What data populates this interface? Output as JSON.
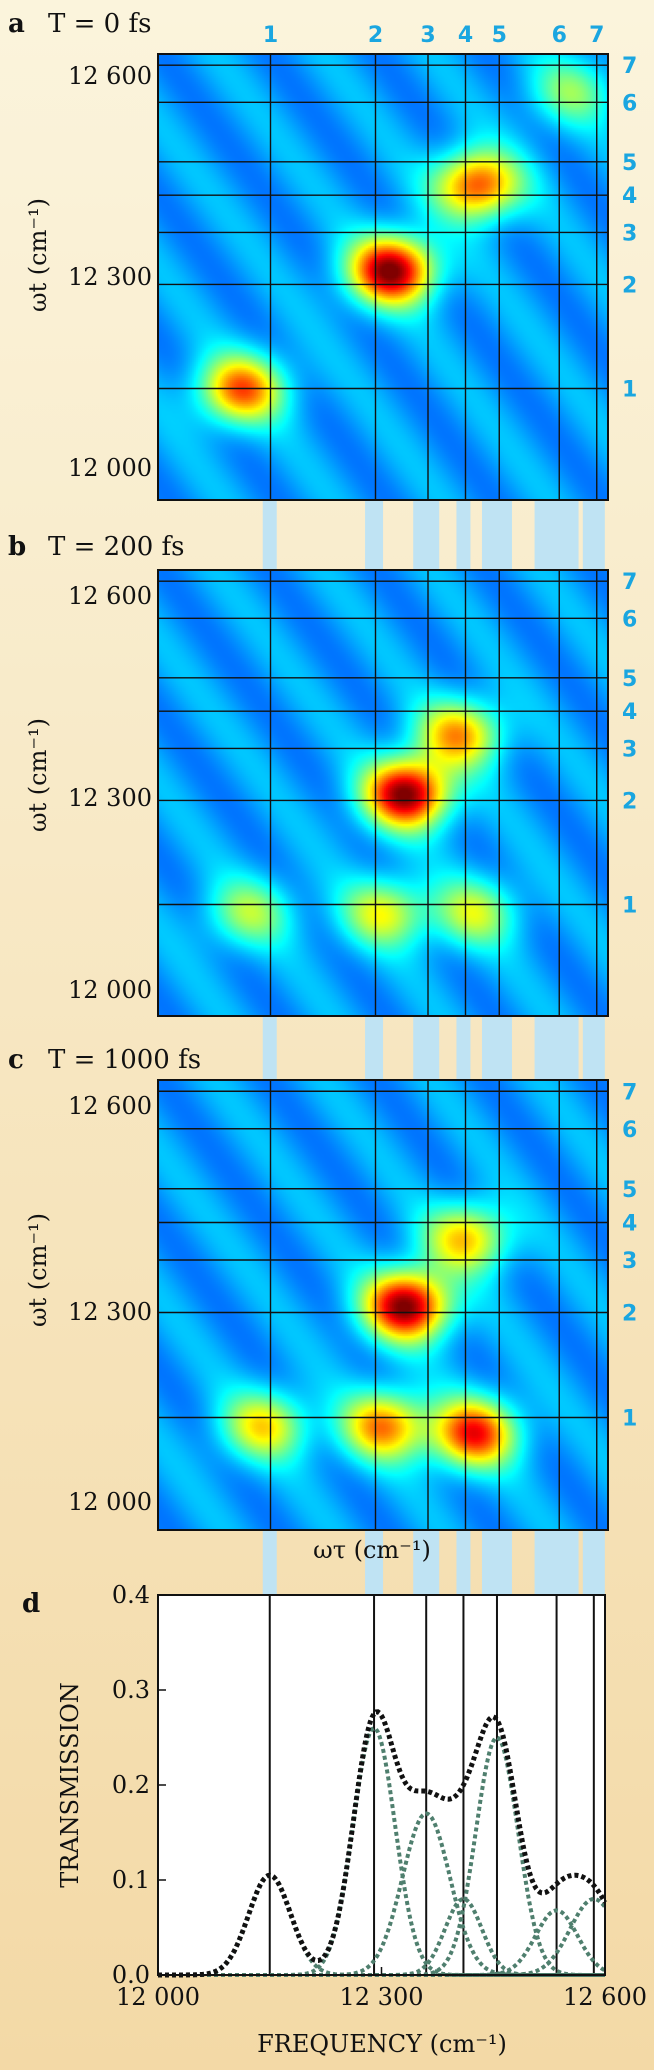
{
  "colors": {
    "marker_band": "#bfe3f3",
    "marker_number": "#1aa6e0",
    "gaussian_curve": "#4f7f6e",
    "total_curve": "#111111",
    "background_top": "#fbf4dc",
    "background_bottom": "#f3d9a6"
  },
  "marker_numbers": [
    "1",
    "2",
    "3",
    "4",
    "5",
    "6",
    "7"
  ],
  "chart_data": [
    {
      "type": "heatmap",
      "panel": "a",
      "title": "T = 0 fs",
      "ylabel": "ωt (cm⁻¹)",
      "xlabel": "",
      "yticks": [
        "12 600",
        "12 300",
        "12 000"
      ],
      "xlim": [
        12000,
        12600
      ],
      "ylim": [
        12000,
        12600
      ],
      "peaks": [
        {
          "x": 12310,
          "y": 12310,
          "amp": 1.0
        },
        {
          "x": 12110,
          "y": 12150,
          "amp": 0.7
        },
        {
          "x": 12425,
          "y": 12425,
          "amp": 0.75
        },
        {
          "x": 12550,
          "y": 12550,
          "amp": 0.3
        }
      ]
    },
    {
      "type": "heatmap",
      "panel": "b",
      "title": "T = 200 fs",
      "ylabel": "ωt (cm⁻¹)",
      "xlabel": "",
      "yticks": [
        "12 600",
        "12 300",
        "12 000"
      ],
      "xlim": [
        12000,
        12600
      ],
      "ylim": [
        12000,
        12600
      ],
      "peaks": [
        {
          "x": 12330,
          "y": 12300,
          "amp": 1.0
        },
        {
          "x": 12400,
          "y": 12380,
          "amp": 0.6
        },
        {
          "x": 12300,
          "y": 12140,
          "amp": 0.45
        },
        {
          "x": 12420,
          "y": 12140,
          "amp": 0.4
        },
        {
          "x": 12120,
          "y": 12140,
          "amp": 0.35
        }
      ]
    },
    {
      "type": "heatmap",
      "panel": "c",
      "title": "T = 1000 fs",
      "ylabel": "ωt (cm⁻¹)",
      "xlabel": "ωτ (cm⁻¹)",
      "yticks": [
        "12 600",
        "12 300",
        "12 000"
      ],
      "xlim": [
        12000,
        12600
      ],
      "ylim": [
        12000,
        12600
      ],
      "peaks": [
        {
          "x": 12330,
          "y": 12300,
          "amp": 1.0
        },
        {
          "x": 12410,
          "y": 12390,
          "amp": 0.55
        },
        {
          "x": 12420,
          "y": 12130,
          "amp": 0.8
        },
        {
          "x": 12300,
          "y": 12140,
          "amp": 0.65
        },
        {
          "x": 12140,
          "y": 12140,
          "amp": 0.5
        }
      ]
    },
    {
      "type": "line",
      "panel": "d",
      "xlabel": "FREQUENCY (cm⁻¹)",
      "ylabel": "TRANSMISSION",
      "xlim": [
        12000,
        12600
      ],
      "ylim": [
        0,
        0.4
      ],
      "xticks": [
        "12 000",
        "12 300",
        "12 600"
      ],
      "yticks": [
        "0.0",
        "0.1",
        "0.2",
        "0.3",
        "0.4"
      ],
      "marker_lines": [
        12150,
        12290,
        12360,
        12410,
        12455,
        12535,
        12585
      ],
      "components": [
        {
          "center": 12150,
          "height": 0.105,
          "width": 40
        },
        {
          "center": 12290,
          "height": 0.26,
          "width": 40
        },
        {
          "center": 12360,
          "height": 0.17,
          "width": 45
        },
        {
          "center": 12410,
          "height": 0.08,
          "width": 35
        },
        {
          "center": 12455,
          "height": 0.25,
          "width": 40
        },
        {
          "center": 12535,
          "height": 0.068,
          "width": 40
        },
        {
          "center": 12585,
          "height": 0.08,
          "width": 45
        }
      ]
    }
  ]
}
